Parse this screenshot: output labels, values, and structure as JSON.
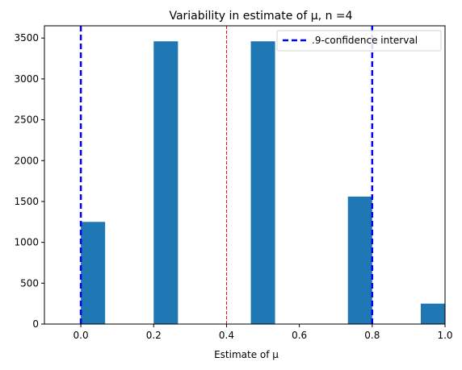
{
  "chart_data": {
    "type": "bar",
    "title": "Variability in estimate of μ, n =4",
    "xlabel": "Estimate of μ",
    "ylabel": "",
    "xlim": [
      -0.1,
      1.0
    ],
    "ylim": [
      0,
      3650
    ],
    "xticks": [
      "0.0",
      "0.2",
      "0.4",
      "0.6",
      "0.8",
      "1.0"
    ],
    "yticks": [
      "0",
      "500",
      "1000",
      "1500",
      "2000",
      "2500",
      "3000",
      "3500"
    ],
    "bar_color": "#1f77b4",
    "bins": [
      {
        "x0": 0.0,
        "x1": 0.0667,
        "count": 1250
      },
      {
        "x0": 0.2,
        "x1": 0.2667,
        "count": 3460
      },
      {
        "x0": 0.4667,
        "x1": 0.5333,
        "count": 3460
      },
      {
        "x0": 0.7333,
        "x1": 0.8,
        "count": 1560
      },
      {
        "x0": 0.9333,
        "x1": 1.0,
        "count": 250
      }
    ],
    "confidence_lines": [
      0.0,
      0.8
    ],
    "confidence_color": "#0000ff",
    "mean_line": 0.4,
    "mean_color": "#ff0000",
    "legend": {
      "label": ".9-confidence interval",
      "position": "top-right"
    },
    "grid": false
  }
}
